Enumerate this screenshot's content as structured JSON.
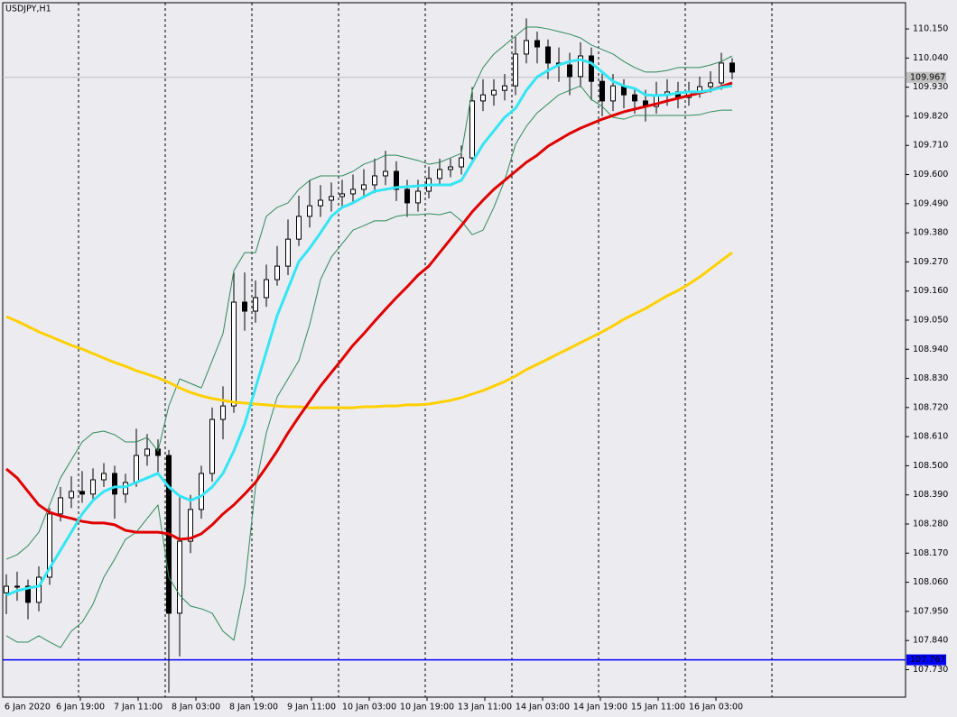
{
  "chart_data": {
    "type": "candlestick",
    "title": "USDJPY,H1",
    "x_labels": [
      "6 Jan 2020",
      "6 Jan 19:00",
      "7 Jan 11:00",
      "8 Jan 03:00",
      "8 Jan 19:00",
      "9 Jan 11:00",
      "10 Jan 03:00",
      "10 Jan 19:00",
      "13 Jan 11:00",
      "14 Jan 03:00",
      "14 Jan 19:00",
      "15 Jan 11:00",
      "16 Jan 03:00"
    ],
    "ylim": [
      107.626,
      110.249
    ],
    "yticks": [
      {
        "value": 110.15,
        "label": "110.150"
      },
      {
        "value": 110.04,
        "label": "110.040"
      },
      {
        "value": 109.93,
        "label": "109.930"
      },
      {
        "value": 109.82,
        "label": "109.820"
      },
      {
        "value": 109.71,
        "label": "109.710"
      },
      {
        "value": 109.6,
        "label": "109.600"
      },
      {
        "value": 109.49,
        "label": "109.490"
      },
      {
        "value": 109.38,
        "label": "109.380"
      },
      {
        "value": 109.27,
        "label": "109.270"
      },
      {
        "value": 109.16,
        "label": "109.160"
      },
      {
        "value": 109.05,
        "label": "109.050"
      },
      {
        "value": 108.94,
        "label": "108.940"
      },
      {
        "value": 108.83,
        "label": "108.830"
      },
      {
        "value": 108.72,
        "label": "108.720"
      },
      {
        "value": 108.61,
        "label": "108.610"
      },
      {
        "value": 108.5,
        "label": "108.500"
      },
      {
        "value": 108.39,
        "label": "108.390"
      },
      {
        "value": 108.28,
        "label": "108.280"
      },
      {
        "value": 108.17,
        "label": "108.170"
      },
      {
        "value": 108.06,
        "label": "108.060"
      },
      {
        "value": 107.95,
        "label": "107.950"
      },
      {
        "value": 107.84,
        "label": "107.840"
      },
      {
        "value": 107.73,
        "label": "107.730"
      }
    ],
    "open": [
      108.02,
      108.045,
      108.045,
      107.984,
      108.079,
      108.318,
      108.379,
      108.403,
      108.393,
      108.447,
      108.471,
      108.393,
      108.437,
      108.539,
      108.563,
      108.539,
      107.943,
      108.215,
      108.335,
      108.471,
      108.675,
      108.726,
      109.118,
      109.084,
      109.135,
      109.203,
      109.254,
      109.356,
      109.442,
      109.482,
      109.503,
      109.517,
      109.527,
      109.544,
      109.561,
      109.595,
      109.612,
      109.544,
      109.493,
      109.537,
      109.585,
      109.619,
      109.629,
      109.663,
      109.878,
      109.901,
      109.918,
      109.935,
      110.055,
      110.106,
      110.082,
      110.021,
      110.014,
      109.97,
      110.048,
      109.952,
      109.878,
      109.935,
      109.901,
      109.878,
      109.857,
      109.901,
      109.912,
      109.891,
      109.912,
      109.932,
      109.946,
      110.021
    ],
    "high": [
      108.09,
      108.1,
      108.07,
      108.12,
      108.34,
      108.42,
      108.46,
      108.48,
      108.49,
      108.51,
      108.5,
      108.47,
      108.64,
      108.62,
      108.6,
      108.56,
      108.38,
      108.39,
      108.5,
      108.72,
      108.8,
      109.23,
      109.23,
      109.2,
      109.26,
      109.33,
      109.43,
      109.52,
      109.58,
      109.56,
      109.57,
      109.58,
      109.6,
      109.62,
      109.66,
      109.69,
      109.65,
      109.58,
      109.58,
      109.63,
      109.66,
      109.66,
      109.71,
      109.93,
      109.96,
      109.96,
      109.98,
      110.12,
      110.19,
      110.14,
      110.11,
      110.08,
      110.06,
      110.1,
      110.08,
      109.99,
      109.98,
      109.96,
      109.93,
      109.92,
      109.95,
      109.96,
      109.95,
      109.95,
      109.97,
      109.99,
      110.06,
      110.04
    ],
    "low": [
      107.94,
      107.99,
      107.92,
      107.95,
      108.05,
      108.29,
      108.34,
      108.36,
      108.37,
      108.42,
      108.3,
      108.36,
      108.42,
      108.5,
      108.47,
      107.643,
      107.78,
      108.17,
      108.3,
      108.44,
      108.6,
      108.7,
      109.01,
      109.04,
      109.1,
      109.18,
      109.22,
      109.33,
      109.4,
      109.44,
      109.46,
      109.47,
      109.49,
      109.51,
      109.53,
      109.56,
      109.5,
      109.44,
      109.46,
      109.51,
      109.56,
      109.59,
      109.6,
      109.64,
      109.84,
      109.86,
      109.88,
      109.9,
      110.02,
      110.02,
      109.96,
      109.95,
      109.9,
      109.93,
      109.88,
      109.82,
      109.84,
      109.85,
      109.83,
      109.8,
      109.83,
      109.86,
      109.85,
      109.86,
      109.89,
      109.91,
      109.92,
      109.96
    ],
    "close": [
      108.045,
      108.045,
      107.984,
      108.079,
      108.318,
      108.379,
      108.403,
      108.393,
      108.447,
      108.471,
      108.393,
      108.437,
      108.539,
      108.563,
      108.539,
      107.943,
      108.215,
      108.335,
      108.471,
      108.675,
      108.726,
      109.118,
      109.084,
      109.135,
      109.203,
      109.254,
      109.356,
      109.442,
      109.482,
      109.503,
      109.517,
      109.527,
      109.544,
      109.561,
      109.595,
      109.612,
      109.544,
      109.493,
      109.537,
      109.585,
      109.619,
      109.629,
      109.663,
      109.878,
      109.901,
      109.918,
      109.935,
      110.055,
      110.106,
      110.082,
      110.021,
      110.014,
      109.97,
      110.048,
      109.952,
      109.878,
      109.935,
      109.901,
      109.878,
      109.857,
      109.901,
      109.912,
      109.891,
      109.912,
      109.932,
      109.946,
      110.021,
      109.987
    ],
    "bands": {
      "color": "#2e8b57",
      "upper": [
        108.147,
        108.164,
        108.198,
        108.249,
        108.352,
        108.454,
        108.522,
        108.59,
        108.624,
        108.631,
        108.617,
        108.59,
        108.59,
        108.607,
        108.556,
        108.726,
        108.828,
        108.811,
        108.794,
        108.897,
        108.999,
        109.237,
        109.305,
        109.305,
        109.442,
        109.476,
        109.493,
        109.544,
        109.578,
        109.595,
        109.595,
        109.595,
        109.612,
        109.639,
        109.653,
        109.673,
        109.673,
        109.663,
        109.653,
        109.639,
        109.646,
        109.663,
        109.68,
        109.918,
        110.004,
        110.055,
        110.089,
        110.123,
        110.157,
        110.157,
        110.15,
        110.14,
        110.13,
        110.116,
        110.089,
        110.072,
        110.055,
        110.027,
        110.004,
        109.987,
        109.987,
        109.993,
        110.004,
        110.004,
        110.004,
        110.014,
        110.027,
        110.048
      ],
      "lower": [
        107.858,
        107.834,
        107.834,
        107.858,
        107.834,
        107.813,
        107.875,
        107.909,
        107.977,
        108.079,
        108.147,
        108.222,
        108.249,
        108.301,
        108.352,
        108.079,
        108.011,
        107.97,
        107.96,
        107.943,
        107.875,
        107.841,
        108.045,
        108.42,
        108.624,
        108.76,
        108.828,
        108.897,
        109.033,
        109.203,
        109.288,
        109.339,
        109.39,
        109.407,
        109.425,
        109.425,
        109.442,
        109.448,
        109.448,
        109.452,
        109.448,
        109.459,
        109.425,
        109.373,
        109.39,
        109.476,
        109.578,
        109.714,
        109.782,
        109.833,
        109.867,
        109.901,
        109.918,
        109.935,
        109.884,
        109.857,
        109.816,
        109.809,
        109.823,
        109.823,
        109.823,
        109.823,
        109.823,
        109.823,
        109.826,
        109.837,
        109.843,
        109.843
      ]
    },
    "lines": [
      {
        "color": "#ffd000",
        "values": [
          109.063,
          109.046,
          109.026,
          109.006,
          108.989,
          108.972,
          108.955,
          108.941,
          108.924,
          108.907,
          108.89,
          108.876,
          108.859,
          108.846,
          108.832,
          108.815,
          108.794,
          108.777,
          108.764,
          108.754,
          108.747,
          108.74,
          108.737,
          108.733,
          108.73,
          108.726,
          108.723,
          108.723,
          108.719,
          108.719,
          108.719,
          108.719,
          108.719,
          108.723,
          108.723,
          108.726,
          108.726,
          108.73,
          108.73,
          108.733,
          108.74,
          108.747,
          108.757,
          108.771,
          108.784,
          108.801,
          108.818,
          108.839,
          108.863,
          108.883,
          108.903,
          108.924,
          108.944,
          108.965,
          108.985,
          109.006,
          109.029,
          109.053,
          109.074,
          109.094,
          109.118,
          109.142,
          109.162,
          109.186,
          109.213,
          109.244,
          109.275,
          109.305
        ]
      },
      {
        "color": "#e00000",
        "values": [
          108.488,
          108.454,
          108.403,
          108.352,
          108.324,
          108.311,
          108.301,
          108.29,
          108.284,
          108.284,
          108.277,
          108.256,
          108.249,
          108.249,
          108.249,
          108.243,
          108.222,
          108.226,
          108.243,
          108.277,
          108.318,
          108.352,
          108.393,
          108.437,
          108.495,
          108.556,
          108.624,
          108.685,
          108.743,
          108.801,
          108.852,
          108.903,
          108.955,
          108.999,
          109.046,
          109.091,
          109.135,
          109.176,
          109.22,
          109.254,
          109.305,
          109.356,
          109.407,
          109.459,
          109.503,
          109.544,
          109.578,
          109.612,
          109.646,
          109.673,
          109.707,
          109.731,
          109.755,
          109.775,
          109.792,
          109.809,
          109.823,
          109.837,
          109.847,
          109.857,
          109.867,
          109.878,
          109.888,
          109.898,
          109.908,
          109.918,
          109.932,
          109.946
        ]
      },
      {
        "color": "#33e6f5",
        "values": [
          108.011,
          108.028,
          108.038,
          108.045,
          108.113,
          108.181,
          108.249,
          108.318,
          108.369,
          108.403,
          108.42,
          108.42,
          108.437,
          108.454,
          108.471,
          108.42,
          108.386,
          108.369,
          108.386,
          108.42,
          108.471,
          108.556,
          108.658,
          108.794,
          108.931,
          109.067,
          109.169,
          109.271,
          109.322,
          109.38,
          109.442,
          109.476,
          109.493,
          109.516,
          109.537,
          109.544,
          109.551,
          109.554,
          109.557,
          109.561,
          109.561,
          109.561,
          109.578,
          109.646,
          109.714,
          109.765,
          109.816,
          109.85,
          109.918,
          109.969,
          109.993,
          110.014,
          110.027,
          110.034,
          110.021,
          109.987,
          109.952,
          109.935,
          109.925,
          109.901,
          109.898,
          109.901,
          109.908,
          109.912,
          109.912,
          109.918,
          109.929,
          109.935
        ]
      }
    ],
    "hlines": [
      {
        "value": 109.967,
        "color": "#c0c0c0"
      },
      {
        "value": 107.767,
        "color": "#0000ff"
      }
    ]
  }
}
